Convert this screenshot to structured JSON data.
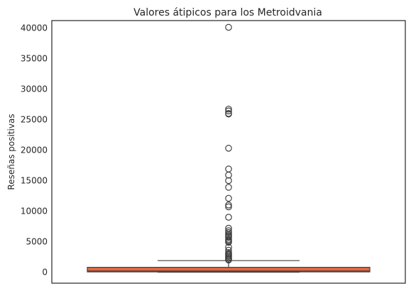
{
  "chart_data": {
    "type": "box",
    "title": "Valores átipicos para los Metroidvania",
    "xlabel": "",
    "ylabel": "Reseñas positivas",
    "ylim": [
      -1800,
      41200
    ],
    "yticks": [
      0,
      5000,
      10000,
      15000,
      20000,
      25000,
      30000,
      35000,
      40000
    ],
    "ytick_labels": [
      "0",
      "5000",
      "10000",
      "15000",
      "20000",
      "25000",
      "30000",
      "35000",
      "40000"
    ],
    "grid": false,
    "box": {
      "q1": 50,
      "median": 200,
      "q3": 800,
      "whisker_low": 0,
      "whisker_high": 1900,
      "color": "#e8663d",
      "edge_color": "#404040"
    },
    "outliers": [
      40100,
      26700,
      26400,
      26000,
      25900,
      20300,
      16900,
      15900,
      15000,
      13900,
      12100,
      11000,
      10700,
      9000,
      7200,
      6800,
      6500,
      6200,
      6000,
      5900,
      5700,
      5400,
      5200,
      5000,
      4900,
      4100,
      3600,
      3200,
      3000,
      2900,
      2700,
      2600,
      2400,
      2300,
      2100,
      2000
    ]
  }
}
